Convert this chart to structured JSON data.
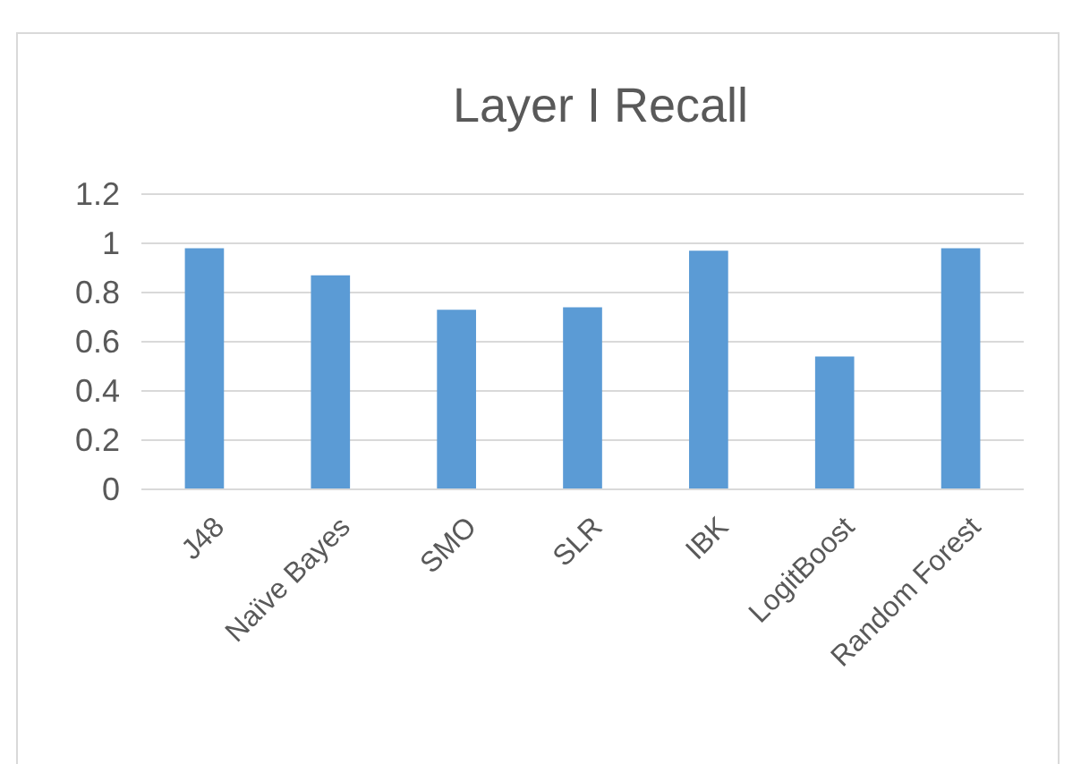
{
  "chart_data": {
    "type": "bar",
    "title": "Layer I Recall",
    "categories": [
      "J48",
      "Naïve Bayes",
      "SMO",
      "SLR",
      "IBK",
      "LogitBoost",
      "Random Forest"
    ],
    "values": [
      0.98,
      0.87,
      0.73,
      0.74,
      0.97,
      0.54,
      0.98
    ],
    "color": "#5b9bd5",
    "ylim": [
      0,
      1.2
    ],
    "yticks": [
      0,
      0.2,
      0.4,
      0.6,
      0.8,
      1,
      1.2
    ],
    "grid": "y"
  }
}
